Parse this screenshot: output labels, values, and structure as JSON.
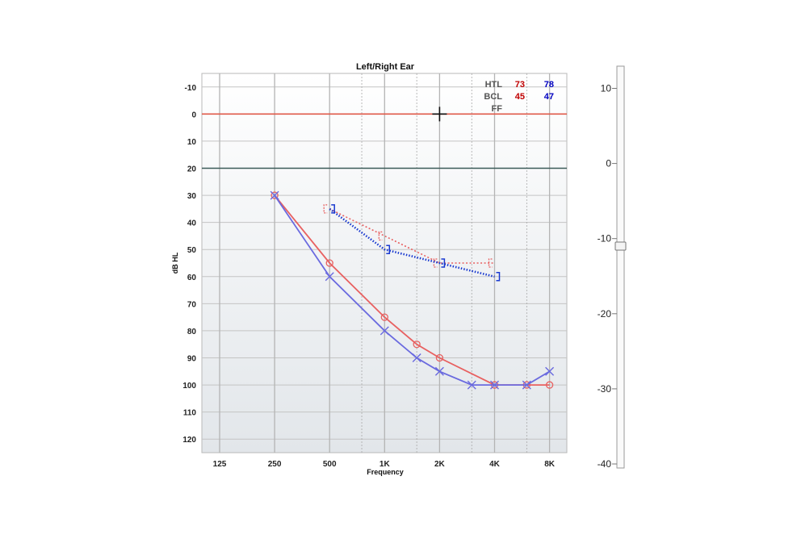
{
  "chart_data": {
    "type": "line",
    "title": "Left/Right Ear",
    "xlabel": "Frequency",
    "ylabel": "dB HL",
    "x_scale": "log",
    "y_inverted": true,
    "ylim": [
      -15,
      125
    ],
    "xlim": [
      85,
      11000
    ],
    "y_ticks": [
      -10,
      0,
      10,
      20,
      30,
      40,
      50,
      60,
      70,
      80,
      90,
      100,
      110,
      120
    ],
    "x_ticks": [
      {
        "value": 125,
        "label": "125"
      },
      {
        "value": 250,
        "label": "250"
      },
      {
        "value": 500,
        "label": "500"
      },
      {
        "value": 1000,
        "label": "1K"
      },
      {
        "value": 2000,
        "label": "2K"
      },
      {
        "value": 4000,
        "label": "4K"
      },
      {
        "value": 8000,
        "label": "8K"
      }
    ],
    "minor_x": [
      750,
      1500,
      3000,
      6000
    ],
    "major_x": [
      125,
      250,
      500,
      1000,
      2000,
      4000,
      8000
    ],
    "reference_lines": [
      {
        "y": 0,
        "color": "#e05a4a"
      },
      {
        "y": 20,
        "color": "#3a5a58"
      }
    ],
    "cursor": {
      "x": 2000,
      "y": 0
    },
    "series": [
      {
        "color": "#e86060",
        "marker": "circle",
        "style": "solid",
        "points": [
          [
            250,
            30
          ],
          [
            500,
            55
          ],
          [
            1000,
            75
          ],
          [
            1500,
            85
          ],
          [
            2000,
            90
          ],
          [
            4000,
            100
          ],
          [
            6000,
            100
          ],
          [
            8000,
            100
          ]
        ]
      },
      {
        "color": "#6a6adf",
        "marker": "x",
        "style": "solid",
        "points": [
          [
            250,
            30
          ],
          [
            500,
            60
          ],
          [
            1000,
            80
          ],
          [
            1500,
            90
          ],
          [
            2000,
            95
          ],
          [
            3000,
            100
          ],
          [
            4000,
            100
          ],
          [
            6000,
            100
          ],
          [
            8000,
            95
          ]
        ]
      },
      {
        "color": "#e86060",
        "marker": "bracket-left",
        "style": "dotted",
        "points": [
          [
            500,
            35
          ],
          [
            1000,
            45
          ],
          [
            2000,
            55
          ],
          [
            4000,
            55
          ]
        ]
      },
      {
        "color": "#1a3ad0",
        "marker": "bracket-right",
        "style": "dotted",
        "points": [
          [
            500,
            35
          ],
          [
            1000,
            50
          ],
          [
            2000,
            55
          ],
          [
            4000,
            60
          ]
        ]
      }
    ],
    "summary": {
      "rows": [
        {
          "label": "HTL",
          "left": "73",
          "right": "78"
        },
        {
          "label": "BCL",
          "left": "45",
          "right": "47"
        },
        {
          "label": "FF",
          "left": "",
          "right": ""
        }
      ],
      "left_color": "#c00000",
      "right_color": "#0000c0"
    }
  },
  "slider": {
    "ticks": [
      10,
      0,
      -10,
      -20,
      -30,
      -40
    ],
    "range": [
      -40,
      10
    ],
    "value": -11
  }
}
